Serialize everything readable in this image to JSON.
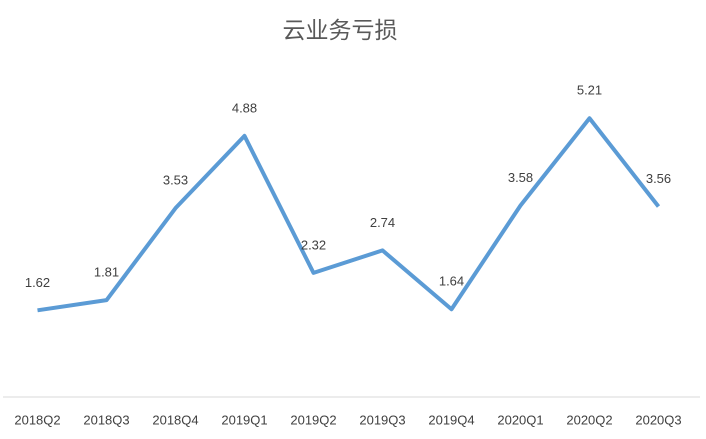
{
  "chart_data": {
    "type": "line",
    "title": "云业务亏损",
    "categories": [
      "2018Q2",
      "2018Q3",
      "2018Q4",
      "2019Q1",
      "2019Q2",
      "2019Q3",
      "2019Q4",
      "2020Q1",
      "2020Q2",
      "2020Q3"
    ],
    "values": [
      1.62,
      1.81,
      3.53,
      4.88,
      2.32,
      2.74,
      1.64,
      3.58,
      5.21,
      3.56
    ],
    "color": "#5b9bd5",
    "ylim": [
      0,
      6
    ]
  }
}
